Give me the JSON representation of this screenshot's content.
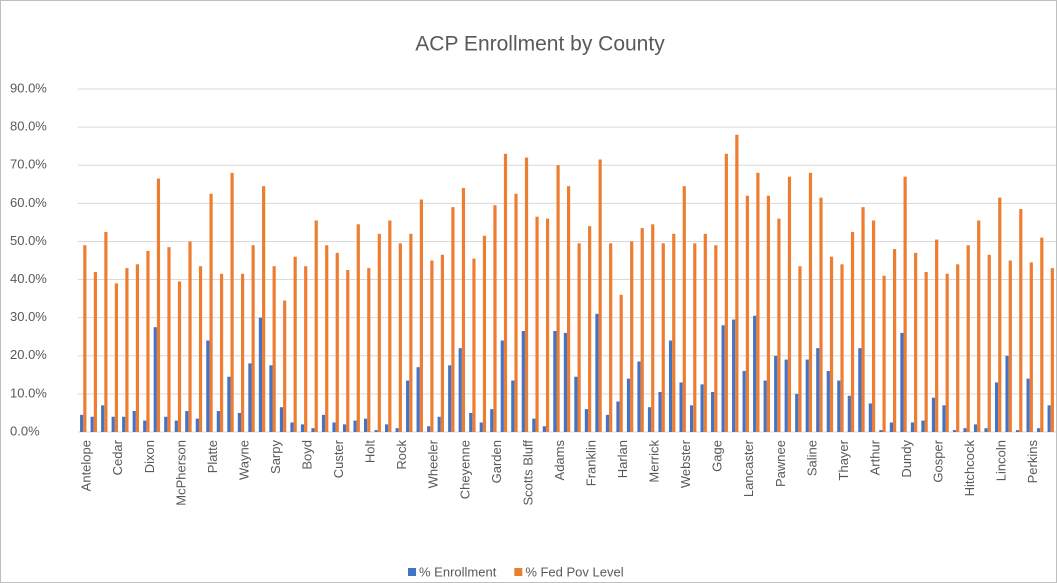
{
  "chart_data": {
    "type": "bar",
    "title": "ACP Enrollment by County",
    "categories": [
      "Antelope",
      null,
      null,
      "Cedar",
      null,
      null,
      "Dixon",
      null,
      null,
      "McPherson",
      null,
      null,
      "Platte",
      null,
      null,
      "Wayne",
      null,
      null,
      "Sarpy",
      null,
      null,
      "Boyd",
      null,
      null,
      "Custer",
      null,
      null,
      "Holt",
      null,
      null,
      "Rock",
      null,
      null,
      "Wheeler",
      null,
      null,
      "Cheyenne",
      null,
      null,
      "Garden",
      null,
      null,
      "Scotts Bluff",
      null,
      null,
      "Adams",
      null,
      null,
      "Franklin",
      null,
      null,
      "Harlan",
      null,
      null,
      "Merrick",
      null,
      null,
      "Webster",
      null,
      null,
      "Gage",
      null,
      null,
      "Lancaster",
      null,
      null,
      "Pawnee",
      null,
      null,
      "Saline",
      null,
      null,
      "Thayer",
      null,
      null,
      "Arthur",
      null,
      null,
      "Dundy",
      null,
      null,
      "Gosper",
      null,
      null,
      "Hitchcock",
      null,
      null,
      "Lincoln",
      null,
      null,
      "Perkins",
      null,
      null
    ],
    "series": [
      {
        "name": "% Enrollment",
        "color": "#4472c4",
        "values": [
          4.5,
          4,
          7,
          4,
          4,
          5.5,
          3,
          27.5,
          4,
          3,
          5.5,
          3.5,
          24,
          5.5,
          14.5,
          5,
          18,
          30,
          17.5,
          6.5,
          2.5,
          2,
          1,
          4.5,
          2.5,
          2,
          3,
          3.5,
          0.5,
          2,
          1,
          13.5,
          17,
          1.5,
          4,
          17.5,
          22,
          5,
          2.5,
          6,
          24,
          13.5,
          26.5,
          3.5,
          1.5,
          26.5,
          26,
          14.5,
          6,
          31,
          4.5,
          8,
          14,
          18.5,
          6.5,
          10.5,
          24,
          13,
          7,
          12.5,
          10.5,
          28,
          29.5,
          16,
          30.5,
          13.5,
          20,
          19,
          10,
          19,
          22,
          16,
          13.5,
          9.5,
          22,
          7.5,
          0.5,
          2.5,
          26,
          2.5,
          3,
          9,
          7,
          0.5,
          1,
          2,
          1,
          13,
          20,
          0.5,
          14,
          1,
          7
        ]
      },
      {
        "name": "% Fed Pov Level",
        "color": "#ed7d31",
        "values": [
          49,
          42,
          52.5,
          39,
          43,
          44,
          47.5,
          66.5,
          48.5,
          39.5,
          50,
          43.5,
          62.5,
          41.5,
          68,
          41.5,
          49,
          64.5,
          43.5,
          34.5,
          46,
          43.5,
          55.5,
          49,
          47,
          42.5,
          54.5,
          43,
          52,
          55.5,
          49.5,
          52,
          61,
          45,
          46.5,
          59,
          64,
          45.5,
          51.5,
          59.5,
          73,
          62.5,
          72,
          56.5,
          56,
          70,
          64.5,
          49.5,
          54,
          71.5,
          49.5,
          36,
          50,
          53.5,
          54.5,
          49.5,
          52,
          64.5,
          49.5,
          52,
          49,
          73,
          78,
          62,
          68,
          62,
          56,
          67,
          43.5,
          68,
          61.5,
          46,
          44,
          52.5,
          59,
          55.5,
          41,
          48,
          67,
          47,
          42,
          50.5,
          41.5,
          44,
          49,
          55.5,
          46.5,
          61.5,
          45,
          58.5,
          44.5,
          51,
          43
        ]
      }
    ],
    "ylim": [
      0,
      90
    ],
    "yticks": [
      {
        "value": 0,
        "label": "0.0%"
      },
      {
        "value": 10,
        "label": "10.0%"
      },
      {
        "value": 20,
        "label": "20.0%"
      },
      {
        "value": 30,
        "label": "30.0%"
      },
      {
        "value": 40,
        "label": "40.0%"
      },
      {
        "value": 50,
        "label": "50.0%"
      },
      {
        "value": 60,
        "label": "60.0%"
      },
      {
        "value": 70,
        "label": "70.0%"
      },
      {
        "value": 80,
        "label": "80.0%"
      },
      {
        "value": 90,
        "label": "90.0%"
      }
    ],
    "grid": true,
    "legend": "bottom"
  }
}
